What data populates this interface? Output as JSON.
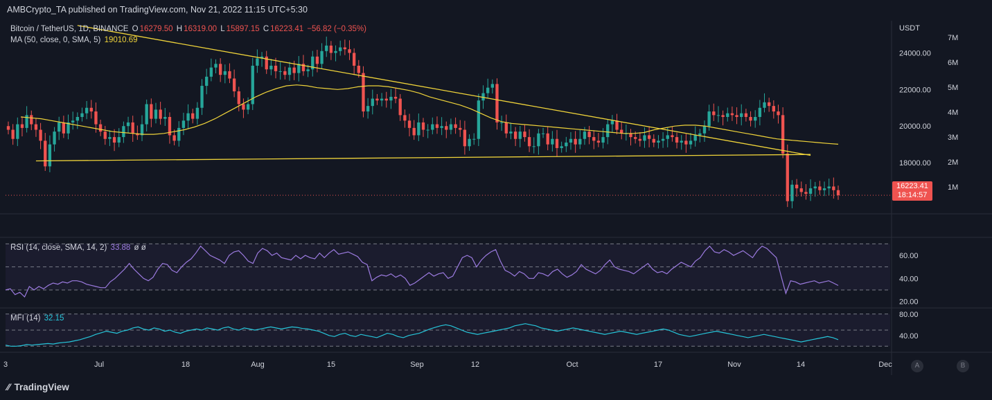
{
  "header": {
    "published": "AMBCrypto_TA published on TradingView.com, Nov 21, 2022 11:15 UTC+5:30"
  },
  "symbol": {
    "name": "Bitcoin / TetherUS, 1D, BINANCE",
    "o_label": "O",
    "o": "16279.50",
    "h_label": "H",
    "h": "16319.00",
    "l_label": "L",
    "l": "15897.15",
    "c_label": "C",
    "c": "16223.41",
    "change": "−56.82 (−0.35%)"
  },
  "ma_legend": {
    "label": "MA (50, close, 0, SMA, 5)",
    "value": "19010.69"
  },
  "rsi_legend": {
    "label": "RSI (14, close, SMA, 14, 2)",
    "value": "33.88",
    "extra": "ø ø"
  },
  "mfi_legend": {
    "label": "MFI (14)",
    "value": "32.15"
  },
  "price_tag": {
    "price": "16223.41",
    "countdown": "18:14:57"
  },
  "scale_buttons": {
    "a": "A",
    "b": "B"
  },
  "footer": {
    "brand": "TradingView"
  },
  "colors": {
    "bg": "#131722",
    "up": "#26a69a",
    "down": "#ef5350",
    "ma": "#f0d43a",
    "rsi": "#9c7be0",
    "mfi": "#26c6da",
    "grid": "#2a2e39"
  },
  "chart_data": [
    {
      "type": "candlestick",
      "currency": "USDT",
      "title": "Bitcoin / TetherUS, 1D, BINANCE",
      "y_ticks": [
        "24000.00",
        "22000.00",
        "20000.00",
        "18000.00"
      ],
      "volume_ticks": [
        "7M",
        "6M",
        "5M",
        "4M",
        "3M",
        "2M",
        "1M"
      ],
      "x_ticks": [
        "3",
        "Jul",
        "18",
        "Aug",
        "15",
        "Sep",
        "12",
        "Oct",
        "17",
        "Nov",
        "14",
        "Dec"
      ],
      "ylim": [
        16000,
        25000
      ],
      "closes": [
        19800,
        19300,
        20100,
        19900,
        20600,
        20100,
        19800,
        19200,
        17800,
        19000,
        19700,
        20200,
        19600,
        20200,
        20300,
        20500,
        20700,
        21000,
        20800,
        20100,
        19700,
        19300,
        19400,
        19100,
        19400,
        20000,
        20200,
        19600,
        19500,
        20100,
        21200,
        20400,
        20900,
        20400,
        20500,
        19500,
        19200,
        19900,
        20300,
        20700,
        20400,
        21000,
        22200,
        22700,
        23200,
        23400,
        22800,
        23000,
        22600,
        21900,
        21200,
        20900,
        21200,
        23300,
        23700,
        23800,
        23100,
        23300,
        23000,
        23000,
        22800,
        23200,
        22900,
        23400,
        23000,
        23100,
        23800,
        23400,
        24100,
        24400,
        24000,
        24100,
        24300,
        24200,
        24000,
        23300,
        22900,
        20800,
        21100,
        21500,
        21400,
        21500,
        21400,
        21600,
        21500,
        20600,
        20300,
        19900,
        19500,
        20200,
        19800,
        19800,
        20100,
        19900,
        20000,
        19800,
        20100,
        19900,
        19800,
        18900,
        19300,
        19300,
        21400,
        21800,
        22100,
        22300,
        20200,
        20200,
        19600,
        19700,
        19300,
        19700,
        19400,
        18900,
        18900,
        19600,
        19600,
        19000,
        19300,
        18800,
        18900,
        19100,
        19300,
        19000,
        19300,
        19700,
        19400,
        19200,
        19100,
        19400,
        20100,
        20300,
        19800,
        19600,
        19600,
        19400,
        19300,
        19200,
        19500,
        19300,
        19100,
        19200,
        19300,
        19500,
        19400,
        19100,
        19200,
        19000,
        19200,
        19500,
        19600,
        20000,
        20800,
        20600,
        20600,
        20500,
        20700,
        20600,
        20500,
        20700,
        20500,
        20300,
        20500,
        21000,
        21300,
        21100,
        20800,
        20600,
        18500,
        15900,
        16800,
        16600,
        16400,
        16300,
        16600,
        16700,
        16500,
        16600,
        16700,
        16500,
        16223.41
      ],
      "ma_50": [
        20500,
        20450,
        20400,
        20300,
        20200,
        20100,
        20000,
        19900,
        19800,
        19700,
        19650,
        19600,
        19550,
        19550,
        19600,
        19700,
        19800,
        19950,
        20150,
        20400,
        20700,
        21000,
        21300,
        21600,
        21850,
        22050,
        22200,
        22250,
        22200,
        22100,
        22050,
        22000,
        22050,
        22150,
        22200,
        22200,
        22150,
        22050,
        21950,
        21800,
        21600,
        21450,
        21300,
        21150,
        20950,
        20700,
        20450,
        20250,
        20150,
        20100,
        20050,
        20000,
        19950,
        19900,
        19850,
        19800,
        19750,
        19700,
        19650,
        19600,
        19600,
        19650,
        19800,
        19900,
        20000,
        20050,
        20050,
        20000,
        19900,
        19800,
        19700,
        19600,
        19500,
        19400,
        19300,
        19250,
        19200,
        19150,
        19100,
        19050,
        19010.69
      ],
      "ma_50_start": 0,
      "resistance_line": {
        "from": [
          15,
          25500
        ],
        "to": [
          174,
          18400
        ]
      },
      "support_line": {
        "from": [
          6,
          18100
        ],
        "to": [
          174,
          18450
        ]
      }
    },
    {
      "type": "line",
      "name": "RSI (14, close, SMA, 14, 2)",
      "y_ticks": [
        "60.00",
        "40.00",
        "20.00"
      ],
      "ylim": [
        15,
        75
      ],
      "values": [
        30,
        31,
        26,
        28,
        24,
        33,
        30,
        33,
        31,
        34,
        36,
        35,
        37,
        36,
        38,
        38,
        37,
        35,
        34,
        33,
        32,
        32,
        37,
        40,
        44,
        48,
        53,
        48,
        44,
        40,
        38,
        41,
        48,
        53,
        52,
        47,
        45,
        50,
        54,
        57,
        62,
        68,
        64,
        60,
        58,
        56,
        53,
        60,
        63,
        64,
        60,
        55,
        53,
        62,
        66,
        64,
        60,
        62,
        58,
        57,
        56,
        60,
        57,
        60,
        58,
        57,
        62,
        58,
        62,
        65,
        61,
        62,
        63,
        61,
        59,
        54,
        52,
        38,
        41,
        43,
        42,
        44,
        41,
        43,
        40,
        34,
        36,
        39,
        42,
        45,
        42,
        44,
        45,
        40,
        42,
        50,
        58,
        60,
        58,
        50,
        56,
        60,
        63,
        65,
        55,
        47,
        45,
        42,
        46,
        44,
        40,
        40,
        45,
        44,
        42,
        46,
        48,
        44,
        41,
        43,
        46,
        52,
        48,
        46,
        44,
        47,
        52,
        56,
        50,
        48,
        47,
        46,
        44,
        47,
        50,
        53,
        48,
        45,
        46,
        44,
        48,
        51,
        54,
        52,
        50,
        55,
        58,
        64,
        68,
        63,
        62,
        65,
        63,
        60,
        62,
        64,
        61,
        58,
        64,
        68,
        66,
        62,
        58,
        42,
        27,
        38,
        37,
        35,
        36,
        37,
        38,
        36,
        37,
        38,
        36,
        33.88
      ]
    },
    {
      "type": "line",
      "name": "MFI (14)",
      "y_ticks": [
        "80.00",
        "40.00"
      ],
      "ylim": [
        10,
        90
      ],
      "values": [
        22,
        20,
        20,
        21,
        23,
        22,
        23,
        24,
        25,
        24,
        26,
        27,
        28,
        30,
        32,
        35,
        38,
        42,
        45,
        48,
        46,
        44,
        48,
        50,
        54,
        56,
        52,
        50,
        54,
        52,
        48,
        50,
        46,
        44,
        48,
        50,
        52,
        50,
        54,
        52,
        50,
        54,
        56,
        52,
        50,
        54,
        52,
        50,
        52,
        54,
        56,
        54,
        52,
        54,
        56,
        55,
        53,
        52,
        50,
        48,
        44,
        40,
        38,
        42,
        44,
        40,
        38,
        42,
        40,
        38,
        36,
        40,
        44,
        42,
        38,
        36,
        40,
        42,
        44,
        48,
        52,
        55,
        58,
        60,
        58,
        54,
        50,
        46,
        44,
        42,
        44,
        46,
        48,
        50,
        52,
        54,
        58,
        60,
        62,
        60,
        58,
        54,
        52,
        50,
        48,
        50,
        52,
        54,
        52,
        50,
        48,
        46,
        44,
        42,
        44,
        46,
        48,
        46,
        44,
        42,
        44,
        46,
        48,
        50,
        52,
        50,
        46,
        42,
        40,
        38,
        40,
        42,
        44,
        46,
        48,
        46,
        44,
        42,
        40,
        38,
        36,
        38,
        40,
        42,
        40,
        38,
        36,
        34,
        32,
        30,
        28,
        30,
        32,
        34,
        36,
        38,
        36,
        32.15
      ]
    }
  ]
}
